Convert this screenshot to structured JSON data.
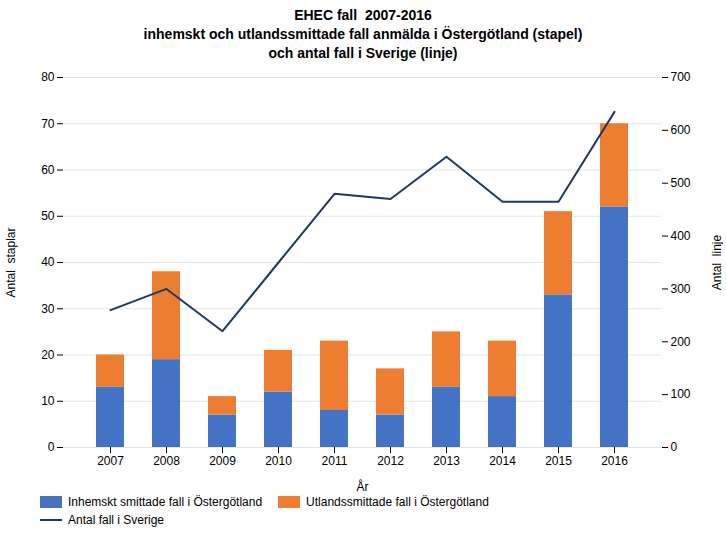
{
  "chart_data": {
    "type": "bar",
    "title": "EHEC fall  2007-2016\ninhemskt och utlandssmittade fall anmälda i Östergötland (stapel)\noch antal fall i Sverige (linje)",
    "xlabel": "År",
    "ylabel": "Antal  staplar",
    "y2label": "Antal  linje",
    "categories": [
      "2007",
      "2008",
      "2009",
      "2010",
      "2011",
      "2012",
      "2013",
      "2014",
      "2015",
      "2016"
    ],
    "series": [
      {
        "name": "Inhemskt smittade fall i Östergötland",
        "color": "#4472C4",
        "values": [
          13,
          19,
          7,
          12,
          8,
          7,
          13,
          11,
          33,
          52
        ]
      },
      {
        "name": "Utlandssmittade fall i Östergötland",
        "color": "#ED7D31",
        "values": [
          7,
          19,
          4,
          9,
          15,
          10,
          12,
          12,
          18,
          18
        ]
      },
      {
        "name": "Antal fall i Sverige",
        "type": "line",
        "axis": "y2",
        "color": "#1F3864",
        "values": [
          260,
          300,
          220,
          350,
          480,
          470,
          550,
          465,
          465,
          635
        ]
      }
    ],
    "stacked": true,
    "ylim": [
      0,
      80
    ],
    "yticks": [
      0,
      10,
      20,
      30,
      40,
      50,
      60,
      70,
      80
    ],
    "y2lim": [
      0,
      700
    ],
    "y2ticks": [
      0,
      100,
      200,
      300,
      400,
      500,
      600,
      700
    ],
    "grid": true,
    "legend": "lower left"
  }
}
